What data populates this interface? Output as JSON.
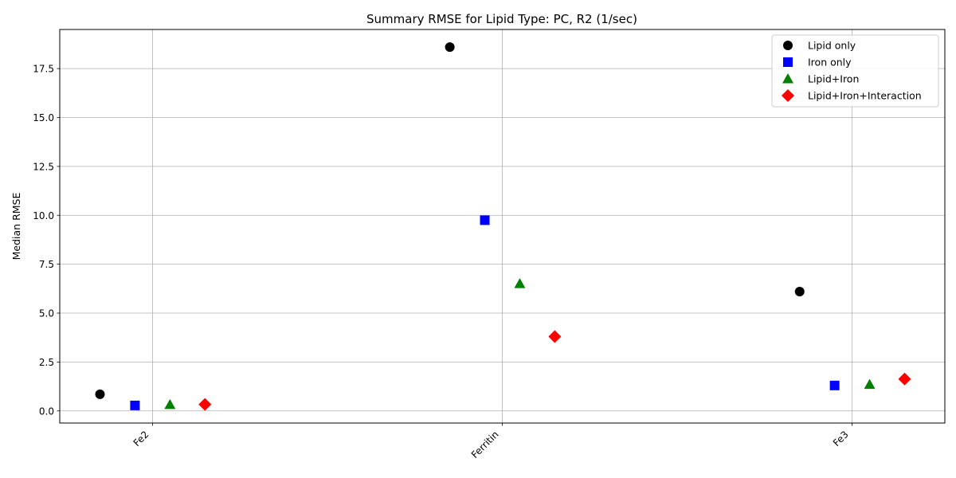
{
  "chart_data": {
    "type": "scatter",
    "title": "Summary RMSE for Lipid Type: PC, R2 (1/sec)",
    "xlabel": "",
    "ylabel": "Median RMSE",
    "categories": [
      "Fe2",
      "Ferritin",
      "Fe3"
    ],
    "ylim": [
      -0.62,
      19.5
    ],
    "yticks": [
      0.0,
      2.5,
      5.0,
      7.5,
      10.0,
      12.5,
      15.0,
      17.5
    ],
    "ytick_labels": [
      "0.0",
      "2.5",
      "5.0",
      "7.5",
      "10.0",
      "12.5",
      "15.0",
      "17.5"
    ],
    "grid": true,
    "legend_position": "top-right",
    "series": [
      {
        "name": "Lipid only",
        "marker": "circle",
        "color": "#000000",
        "offset": -0.15,
        "values": [
          0.85,
          18.6,
          6.1
        ]
      },
      {
        "name": "Iron only",
        "marker": "square",
        "color": "#0000ff",
        "offset": -0.05,
        "values": [
          0.28,
          9.75,
          1.3
        ]
      },
      {
        "name": "Lipid+Iron",
        "marker": "triangle",
        "color": "#008000",
        "offset": 0.05,
        "values": [
          0.32,
          6.5,
          1.35
        ]
      },
      {
        "name": "Lipid+Iron+Interaction",
        "marker": "diamond",
        "color": "#ff0000",
        "offset": 0.15,
        "values": [
          0.33,
          3.8,
          1.63
        ]
      }
    ]
  }
}
